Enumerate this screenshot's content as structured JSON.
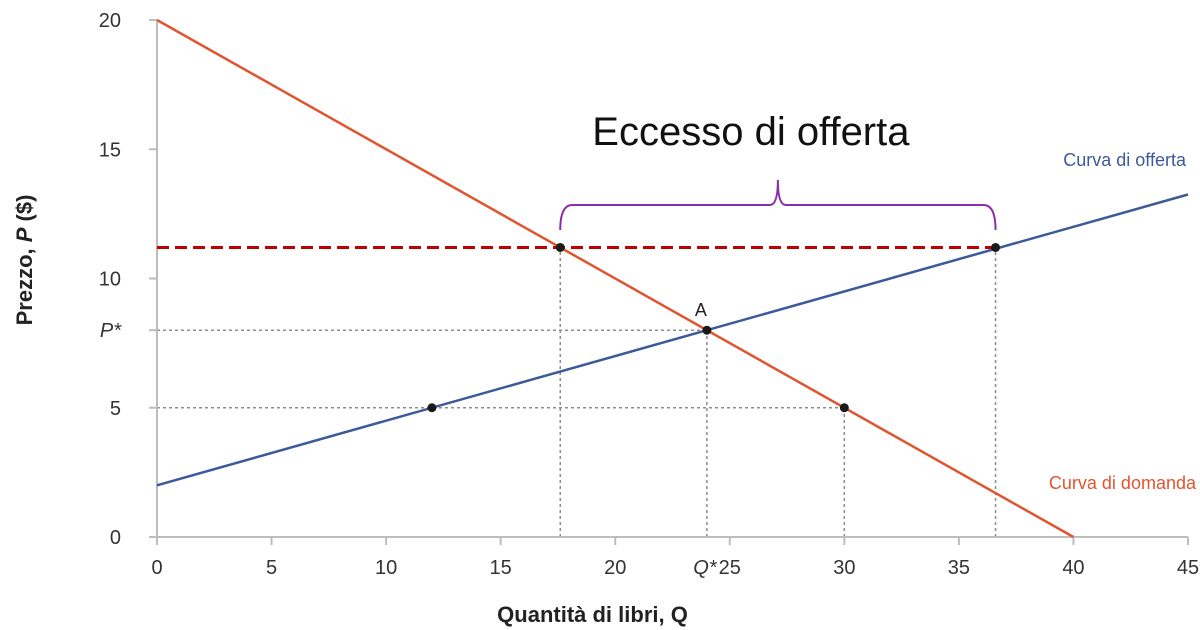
{
  "chart_data": {
    "type": "line",
    "title": "",
    "xlabel": "Quantità di libri, Q",
    "ylabel_prefix": "Prezzo, ",
    "ylabel_var": "P",
    "ylabel_suffix": " ($)",
    "xlim": [
      0,
      45
    ],
    "ylim": [
      0,
      20
    ],
    "x_ticks": [
      0,
      5,
      10,
      15,
      20,
      25,
      30,
      35,
      40,
      45
    ],
    "y_ticks": [
      0,
      5,
      10,
      15,
      20
    ],
    "grid": false,
    "series": [
      {
        "name": "Curva di offerta",
        "color": "#3b5a9a",
        "x": [
          0,
          45
        ],
        "y": [
          2,
          13.25
        ]
      },
      {
        "name": "Curva di domanda",
        "color": "#e0552f",
        "x": [
          0,
          40
        ],
        "y": [
          20,
          0
        ]
      }
    ],
    "points": [
      {
        "x": 12,
        "y": 5
      },
      {
        "x": 24,
        "y": 8,
        "label": "A"
      },
      {
        "x": 30,
        "y": 5
      },
      {
        "x": 17.6,
        "y": 11.2
      },
      {
        "x": 36.6,
        "y": 11.2
      }
    ],
    "reference_lines": [
      {
        "type": "h",
        "y": 8,
        "x0": 0,
        "x1": 24
      },
      {
        "type": "h",
        "y": 5,
        "x0": 0,
        "x1": 30
      },
      {
        "type": "v",
        "x": 24,
        "y0": 0,
        "y1": 8
      },
      {
        "type": "v",
        "x": 30,
        "y0": 0,
        "y1": 5
      },
      {
        "type": "v",
        "x": 17.6,
        "y0": 0,
        "y1": 11.2
      },
      {
        "type": "v",
        "x": 36.6,
        "y0": 0,
        "y1": 11.2
      }
    ],
    "price_line": {
      "y": 11.2,
      "x0": 0,
      "x1": 36.6,
      "color": "#c00000"
    },
    "special_ticks": {
      "y": {
        "value": 8,
        "label": "P*"
      },
      "x": {
        "value": 24,
        "label": "Q*"
      }
    },
    "brace": {
      "x0": 17.6,
      "x1": 36.6,
      "color": "#8b2fa8"
    },
    "annotation": "Eccesso di offerta"
  }
}
